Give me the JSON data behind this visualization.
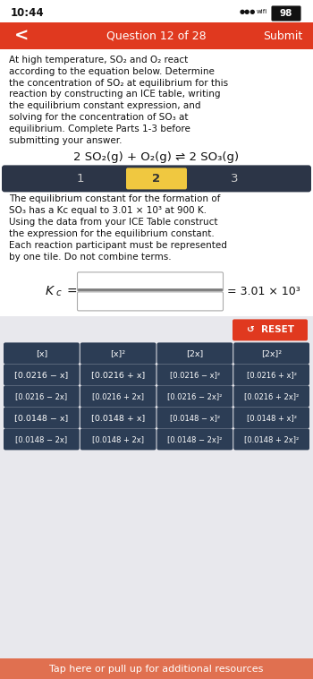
{
  "bg_color": "#ffffff",
  "status_bar_time": "10:44",
  "status_bar_battery": "98",
  "header_color": "#e0391f",
  "header_text": "Question 12 of 28",
  "header_submit": "Submit",
  "body_text_lines": [
    "At high temperature, SO₂ and O₂ react",
    "according to the equation below. Determine",
    "the concentration of SO₂ at equilibrium for this",
    "reaction by constructing an ICE table, writing",
    "the equilibrium constant expression, and",
    "solving for the concentration of SO₃ at",
    "equilibrium. Complete Parts 1-3 before",
    "submitting your answer."
  ],
  "equation": "2 SO₂(g) + O₂(g) ⇌ 2 SO₃(g)",
  "tab_bar_bg": "#2c3547",
  "tab_active_color": "#f0c840",
  "tabs": [
    "1",
    "2",
    "3"
  ],
  "active_tab": 1,
  "body_text2_lines": [
    "The equilibrium constant for the formation of",
    "SO₃ has a Kc equal to 3.01 × 10³ at 900 K.",
    "Using the data from your ICE Table construct",
    "the expression for the equilibrium constant.",
    "Each reaction participant must be represented",
    "by one tile. Do not combine terms."
  ],
  "kc_value_text": "= 3.01 × 10³",
  "tile_area_bg": "#e8e8ed",
  "reset_btn_color": "#e0391f",
  "reset_text": "↺  RESET",
  "tile_color": "#2c3d55",
  "tile_text_color": "#ffffff",
  "tiles_row1": [
    "[x]",
    "[x]²",
    "[2x]",
    "[2x]²"
  ],
  "tiles_row2": [
    "[0.0216 − x]",
    "[0.0216 + x]",
    "[0.0216 − x]²",
    "[0.0216 + x]²"
  ],
  "tiles_row3": [
    "[0.0216 − 2x]",
    "[0.0216 + 2x]",
    "[0.0216 − 2x]²",
    "[0.0216 + 2x]²"
  ],
  "tiles_row4": [
    "[0.0148 − x]",
    "[0.0148 + x]",
    "[0.0148 − x]²",
    "[0.0148 + x]²"
  ],
  "tiles_row5": [
    "[0.0148 − 2x]",
    "[0.0148 + 2x]",
    "[0.0148 − 2x]²",
    "[0.0148 + 2x]²"
  ],
  "footer_text": "Tap here or pull up for additional resources",
  "footer_color": "#e07050",
  "footer_text_color": "#ffffff",
  "home_indicator_color": "#333333"
}
